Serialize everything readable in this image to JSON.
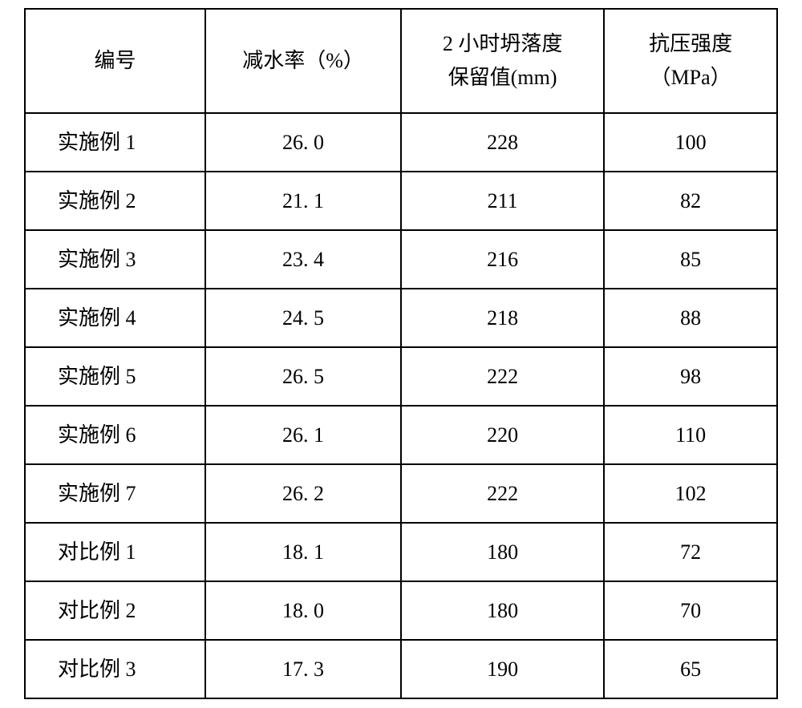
{
  "table": {
    "columns": [
      {
        "label": "编号",
        "width": "24%",
        "align": "center"
      },
      {
        "label": "减水率（%）",
        "width": "26%",
        "align": "center"
      },
      {
        "label": "2 小时坍落度\n保留值(mm)",
        "width": "27%",
        "align": "center"
      },
      {
        "label": "抗压强度\n（MPa）",
        "width": "23%",
        "align": "center"
      }
    ],
    "rows": [
      {
        "label": "实施例 1",
        "v1": "26. 0",
        "v2": "228",
        "v3": "100"
      },
      {
        "label": "实施例 2",
        "v1": "21. 1",
        "v2": "211",
        "v3": "82"
      },
      {
        "label": "实施例 3",
        "v1": "23. 4",
        "v2": "216",
        "v3": "85"
      },
      {
        "label": "实施例 4",
        "v1": "24. 5",
        "v2": "218",
        "v3": "88"
      },
      {
        "label": "实施例 5",
        "v1": "26. 5",
        "v2": "222",
        "v3": "98"
      },
      {
        "label": "实施例 6",
        "v1": "26. 1",
        "v2": "220",
        "v3": "110"
      },
      {
        "label": "实施例 7",
        "v1": "26. 2",
        "v2": "222",
        "v3": "102"
      },
      {
        "label": "对比例 1",
        "v1": "18. 1",
        "v2": "180",
        "v3": "72"
      },
      {
        "label": "对比例 2",
        "v1": "18. 0",
        "v2": "180",
        "v3": "70"
      },
      {
        "label": "对比例 3",
        "v1": "17. 3",
        "v2": "190",
        "v3": "65"
      }
    ],
    "border_color": "#000000",
    "background_color": "#ffffff",
    "font_size": 26,
    "font_family": "SimSun"
  }
}
